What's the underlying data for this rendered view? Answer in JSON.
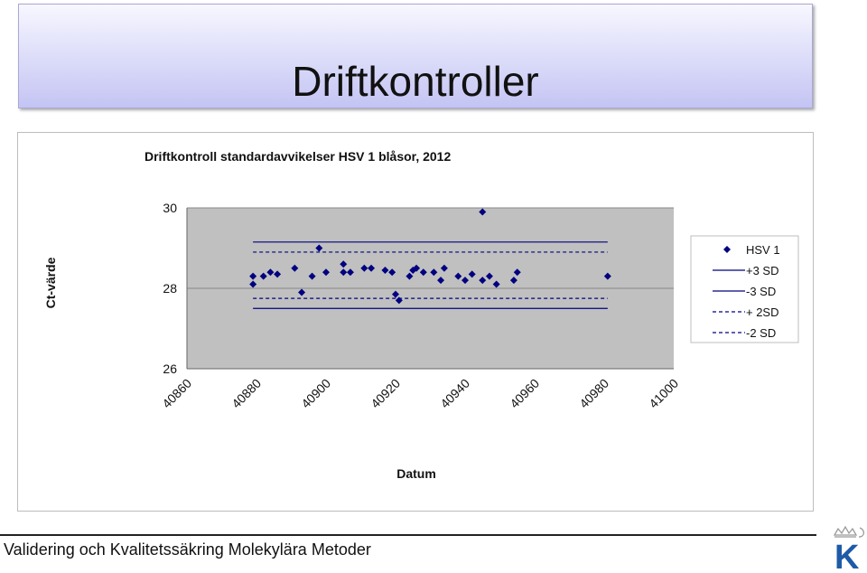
{
  "slide": {
    "title": "Driftkontroller",
    "footer": "Validering och Kvalitetssäkring Molekylära Metoder"
  },
  "logo": {
    "letter": "K",
    "color": "#1f5aa8"
  },
  "chart_data": {
    "type": "scatter",
    "title": "Driftkontroll standardavvikelser HSV 1 blåsor, 2012",
    "xlabel": "Datum",
    "ylabel": "Ct-värde",
    "xlim": [
      40860,
      41000
    ],
    "ylim": [
      26,
      30
    ],
    "xticks": [
      40860,
      40880,
      40900,
      40920,
      40940,
      40960,
      40980,
      41000
    ],
    "yticks": [
      26,
      28,
      30
    ],
    "plot_background": "#c0c0c0",
    "gridlines": "horizontal",
    "legend_position": "right",
    "series": [
      {
        "name": "HSV 1",
        "style": "marker",
        "color": "#000080",
        "points": [
          [
            40879,
            28.1
          ],
          [
            40879,
            28.3
          ],
          [
            40882,
            28.3
          ],
          [
            40884,
            28.4
          ],
          [
            40886,
            28.35
          ],
          [
            40891,
            28.5
          ],
          [
            40893,
            27.9
          ],
          [
            40896,
            28.3
          ],
          [
            40898,
            29.0
          ],
          [
            40900,
            28.4
          ],
          [
            40905,
            28.6
          ],
          [
            40905,
            28.4
          ],
          [
            40907,
            28.4
          ],
          [
            40911,
            28.5
          ],
          [
            40913,
            28.5
          ],
          [
            40917,
            28.45
          ],
          [
            40919,
            28.4
          ],
          [
            40920,
            27.85
          ],
          [
            40921,
            27.7
          ],
          [
            40924,
            28.3
          ],
          [
            40925,
            28.45
          ],
          [
            40926,
            28.5
          ],
          [
            40928,
            28.4
          ],
          [
            40931,
            28.4
          ],
          [
            40933,
            28.2
          ],
          [
            40934,
            28.5
          ],
          [
            40938,
            28.3
          ],
          [
            40940,
            28.2
          ],
          [
            40942,
            28.35
          ],
          [
            40945,
            29.9
          ],
          [
            40945,
            28.2
          ],
          [
            40947,
            28.3
          ],
          [
            40949,
            28.1
          ],
          [
            40954,
            28.2
          ],
          [
            40955,
            28.4
          ],
          [
            40981,
            28.3
          ]
        ]
      },
      {
        "name": "+3 SD",
        "style": "solid",
        "color": "#000080",
        "x": [
          40879,
          40981
        ],
        "y": 29.15
      },
      {
        "name": "-3 SD",
        "style": "solid",
        "color": "#000080",
        "x": [
          40879,
          40981
        ],
        "y": 27.5
      },
      {
        "name": "+ 2SD",
        "style": "dashed",
        "color": "#000080",
        "x": [
          40879,
          40981
        ],
        "y": 28.9
      },
      {
        "name": "-2 SD",
        "style": "dashed",
        "color": "#000080",
        "x": [
          40879,
          40981
        ],
        "y": 27.75
      }
    ]
  }
}
